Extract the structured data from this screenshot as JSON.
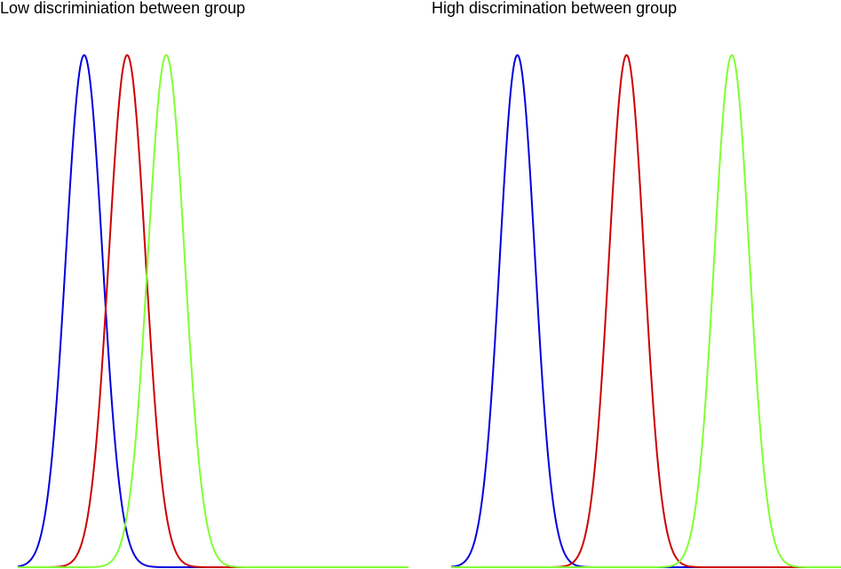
{
  "chart_data": [
    {
      "type": "line",
      "title": "Low discriminiation between group",
      "xlabel": "",
      "ylabel": "",
      "grid": false,
      "legend": "none",
      "xlim": [
        0,
        1
      ],
      "ylim": [
        0,
        1
      ],
      "curve": "normal density",
      "series": [
        {
          "color": "#0000dd",
          "mean": 0.17,
          "sd": 0.047,
          "peak": 1.0
        },
        {
          "color": "#cc0000",
          "mean": 0.28,
          "sd": 0.047,
          "peak": 1.0
        },
        {
          "color": "#80ff33",
          "mean": 0.38,
          "sd": 0.047,
          "peak": 1.0
        }
      ]
    },
    {
      "type": "line",
      "title": "High discrimination between group",
      "xlabel": "",
      "ylabel": "",
      "grid": false,
      "legend": "none",
      "xlim": [
        0,
        1
      ],
      "ylim": [
        0,
        1
      ],
      "curve": "normal density",
      "series": [
        {
          "color": "#0000dd",
          "mean": 0.17,
          "sd": 0.045,
          "peak": 1.0
        },
        {
          "color": "#cc0000",
          "mean": 0.45,
          "sd": 0.045,
          "peak": 1.0
        },
        {
          "color": "#80ff33",
          "mean": 0.72,
          "sd": 0.045,
          "peak": 1.0
        }
      ]
    }
  ]
}
